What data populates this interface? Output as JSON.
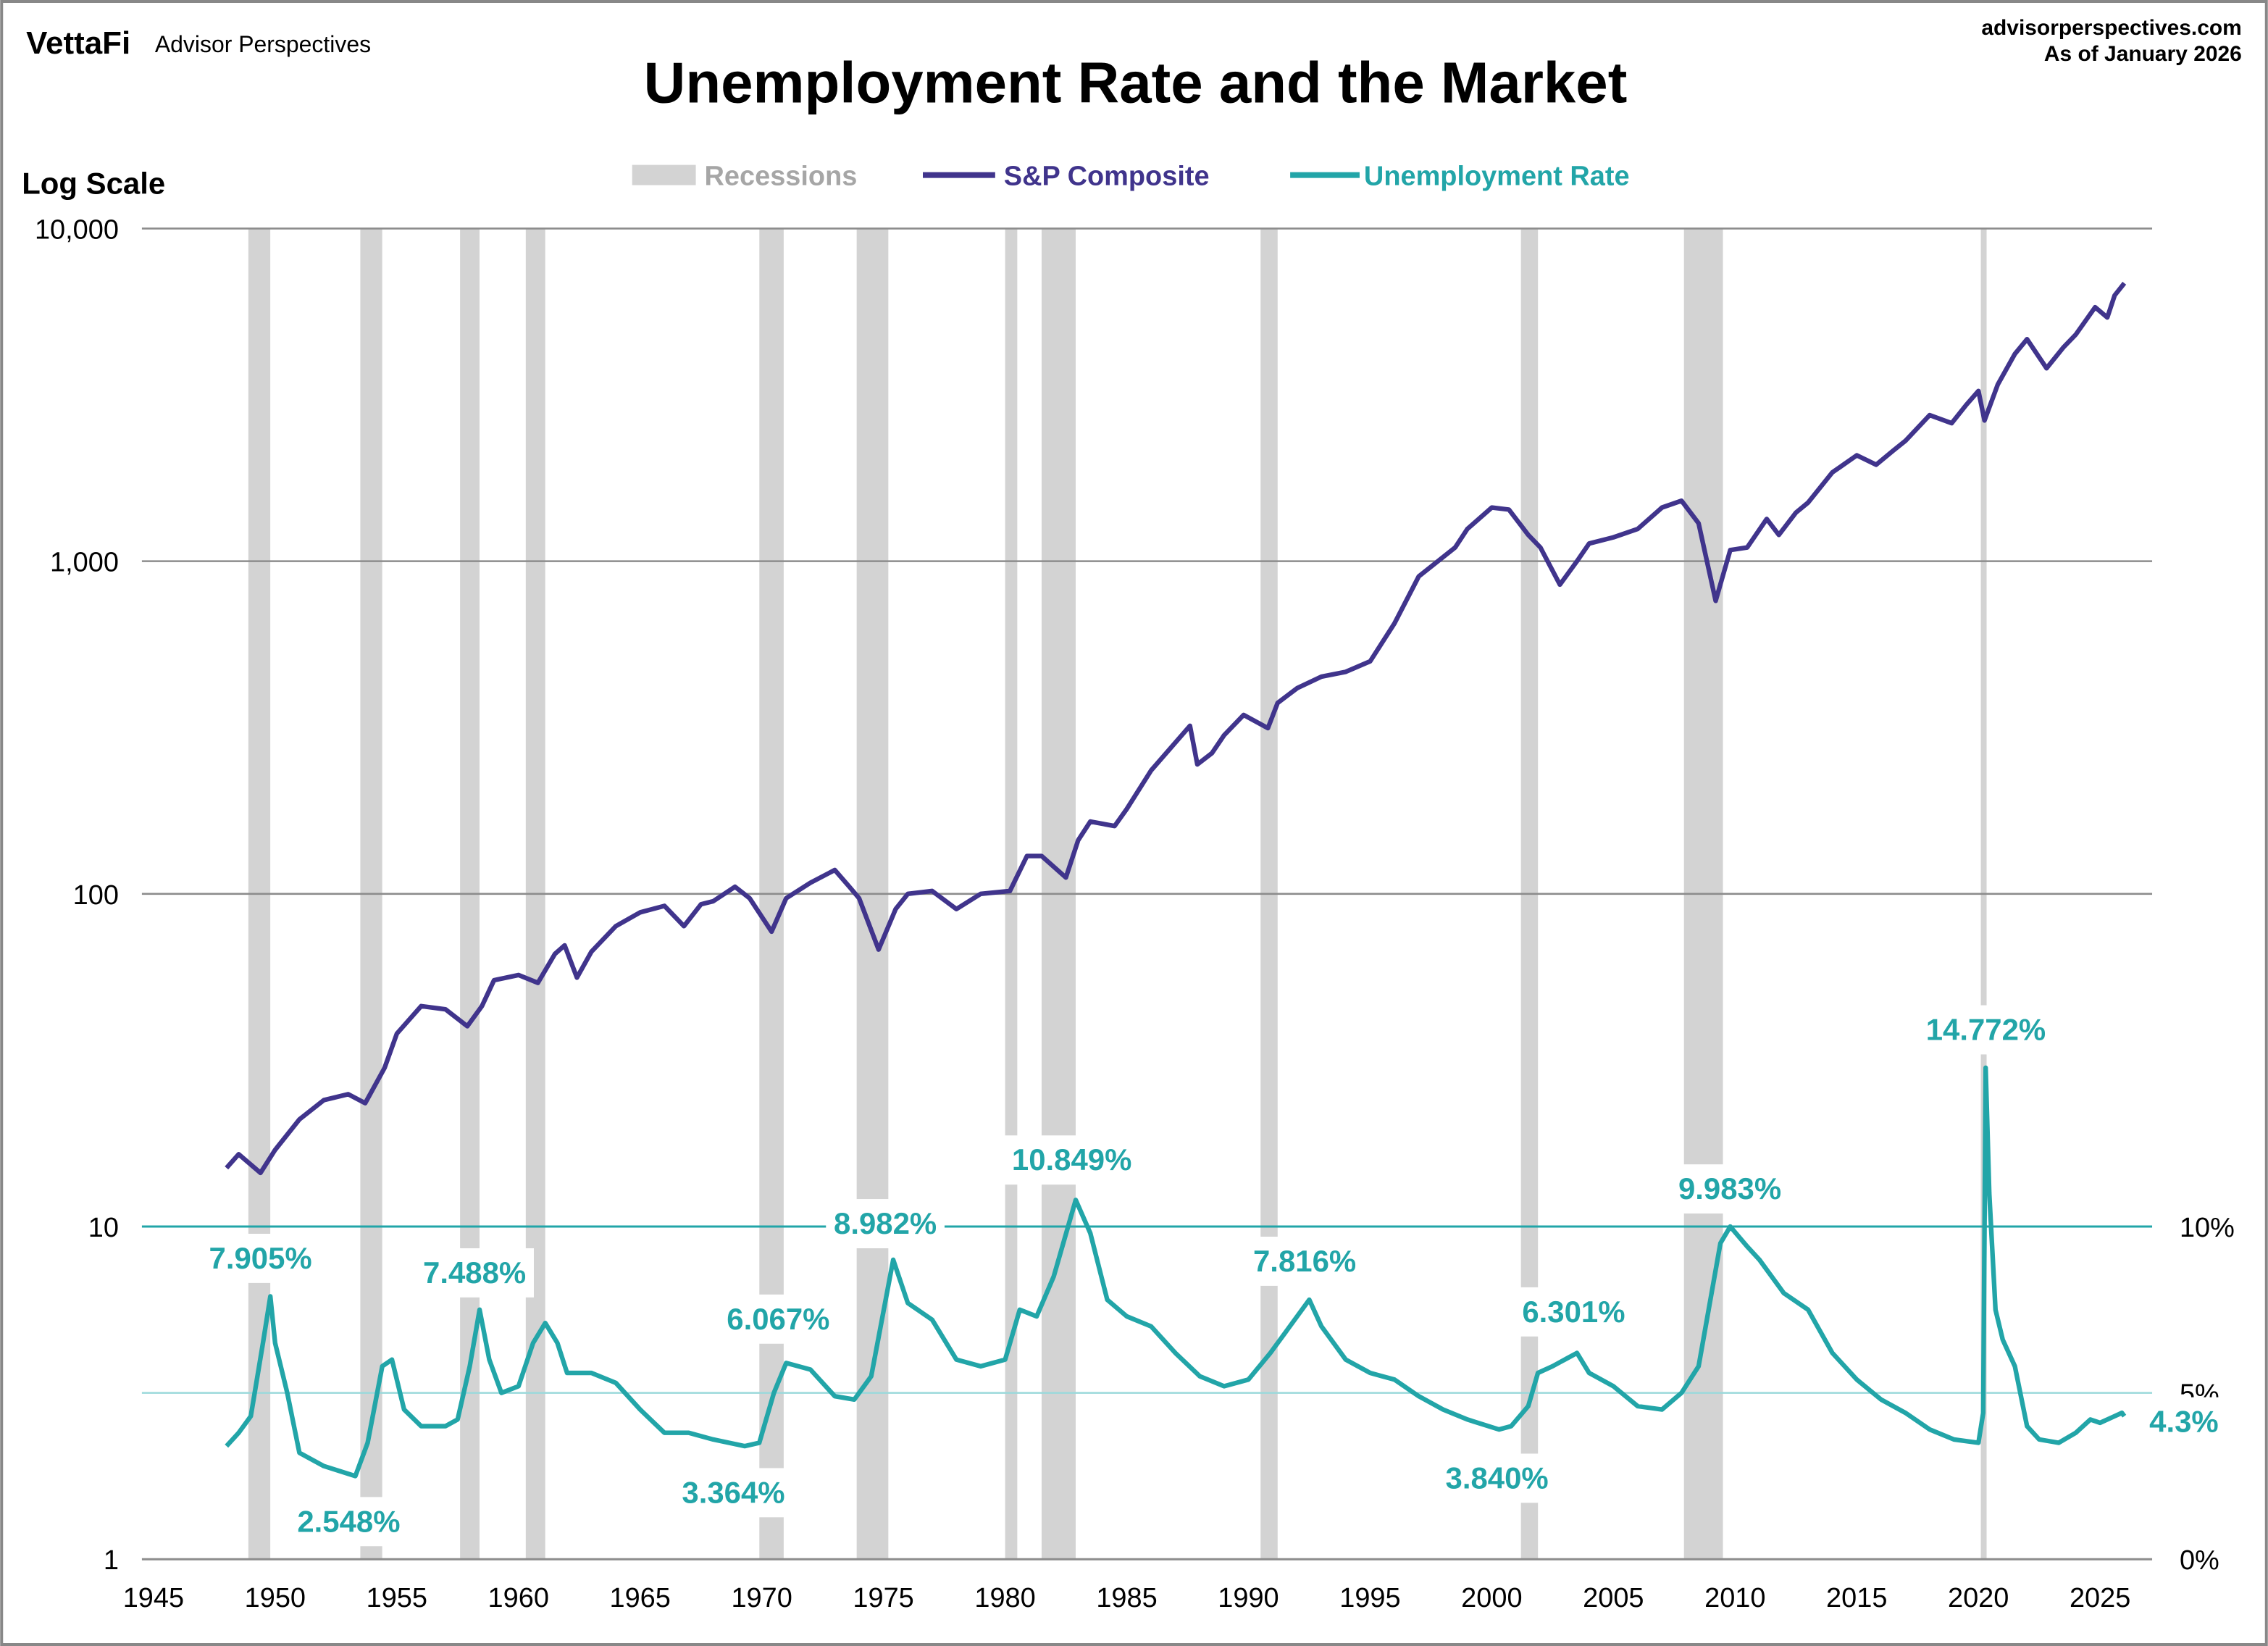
{
  "header": {
    "brand_logo": "VettaFi",
    "brand_name": "Advisor Perspectives",
    "website": "advisorperspectives.com",
    "as_of": "As of January 2026"
  },
  "chart_data": {
    "type": "line",
    "title": "Unemployment Rate and the Market",
    "left_axis_label": "Log Scale",
    "left_axis": {
      "scale": "log",
      "range": [
        1,
        10000
      ],
      "ticks": [
        "1",
        "10",
        "100",
        "1,000",
        "10,000"
      ]
    },
    "right_axis": {
      "scale": "linear",
      "range": [
        0,
        40
      ],
      "ticks": [
        "0%",
        "5%",
        "10%"
      ]
    },
    "x_axis": {
      "range": [
        1945,
        2027
      ],
      "ticks": [
        "1945",
        "1950",
        "1955",
        "1960",
        "1965",
        "1970",
        "1975",
        "1980",
        "1985",
        "1990",
        "1995",
        "2000",
        "2005",
        "2010",
        "2015",
        "2020",
        "2025"
      ]
    },
    "legend_position": "top-center",
    "legend": [
      {
        "name": "Recessions",
        "color": "#d3d3d3"
      },
      {
        "name": "S&P Composite",
        "color": "#40348c"
      },
      {
        "name": "Unemployment Rate",
        "color": "#22a5a8"
      }
    ],
    "recessions": [
      [
        1948.9,
        1949.8
      ],
      [
        1953.5,
        1954.4
      ],
      [
        1957.6,
        1958.4
      ],
      [
        1960.3,
        1961.1
      ],
      [
        1969.9,
        1970.9
      ],
      [
        1973.9,
        1975.2
      ],
      [
        1980.0,
        1980.5
      ],
      [
        1981.5,
        1982.9
      ],
      [
        1990.5,
        1991.2
      ],
      [
        2001.2,
        2001.9
      ],
      [
        2007.9,
        2009.5
      ],
      [
        2020.1,
        2020.3
      ]
    ],
    "series": [
      {
        "name": "S&P Composite",
        "axis": "left",
        "x": [
          1948.0,
          1948.5,
          1949.4,
          1950,
          1951,
          1952,
          1953,
          1953.7,
          1954.5,
          1955,
          1956,
          1957,
          1957.9,
          1958.5,
          1959,
          1960,
          1960.8,
          1961.5,
          1961.9,
          1962.4,
          1963,
          1964,
          1965,
          1966,
          1966.8,
          1967.5,
          1968,
          1968.9,
          1969.5,
          1970.4,
          1971,
          1972,
          1973,
          1973.6,
          1974,
          1974.8,
          1975.5,
          1976,
          1977,
          1978,
          1979,
          1980.2,
          1980.9,
          1981.5,
          1982.5,
          1983,
          1983.5,
          1984.5,
          1985,
          1986,
          1987.6,
          1987.9,
          1988.5,
          1989,
          1989.8,
          1990.8,
          1991.2,
          1992,
          1993,
          1994,
          1995,
          1996,
          1997,
          1998.5,
          1999,
          2000,
          2000.7,
          2001.5,
          2002,
          2002.8,
          2003.5,
          2004,
          2005,
          2006,
          2007,
          2007.8,
          2008.5,
          2009.2,
          2009.8,
          2010.5,
          2011.3,
          2011.8,
          2012.5,
          2013,
          2014,
          2015,
          2015.8,
          2016.5,
          2017,
          2018,
          2018.9,
          2019.5,
          2020.0,
          2020.25,
          2020.8,
          2021.5,
          2022,
          2022.8,
          2023.5,
          2024,
          2024.8,
          2025.3,
          2025.6,
          2026.0
        ],
        "values": [
          15,
          16.5,
          14.5,
          17,
          21,
          24,
          25,
          23.5,
          30,
          38,
          46,
          45,
          40,
          46,
          55,
          57,
          54,
          66,
          70,
          56,
          67,
          80,
          88,
          92,
          80,
          93,
          95,
          105,
          97,
          77,
          97,
          108,
          118,
          105,
          97,
          68,
          90,
          100,
          102,
          90,
          100,
          102,
          130,
          130,
          112,
          145,
          165,
          160,
          180,
          235,
          320,
          245,
          265,
          300,
          345,
          315,
          375,
          415,
          450,
          465,
          500,
          650,
          900,
          1100,
          1250,
          1450,
          1430,
          1200,
          1100,
          850,
          1000,
          1130,
          1180,
          1250,
          1450,
          1520,
          1300,
          760,
          1080,
          1100,
          1340,
          1200,
          1400,
          1500,
          1850,
          2080,
          1950,
          2150,
          2300,
          2750,
          2600,
          2950,
          3250,
          2650,
          3400,
          4200,
          4650,
          3800,
          4400,
          4800,
          5800,
          5400,
          6300,
          6850
        ]
      },
      {
        "name": "Unemployment Rate",
        "axis": "right",
        "x": [
          1948.0,
          1948.5,
          1949.0,
          1949.5,
          1949.8,
          1950.0,
          1950.5,
          1951,
          1952,
          1953.3,
          1953.8,
          1954.4,
          1954.8,
          1955.3,
          1956,
          1957,
          1957.5,
          1958.0,
          1958.4,
          1958.8,
          1959.3,
          1960,
          1960.6,
          1961.1,
          1961.6,
          1962,
          1963,
          1964,
          1965,
          1966,
          1967,
          1968,
          1969.3,
          1969.9,
          1970.5,
          1971,
          1972,
          1973,
          1973.8,
          1974.5,
          1975.4,
          1976,
          1977,
          1978,
          1979,
          1980.0,
          1980.6,
          1981.3,
          1982,
          1982.9,
          1983.5,
          1984.2,
          1985,
          1986,
          1987,
          1988,
          1989,
          1990.0,
          1990.9,
          1991.5,
          1992.5,
          1993,
          1994,
          1995,
          1996,
          1997,
          1998,
          1999,
          2000.3,
          2000.8,
          2001.5,
          2001.9,
          2002.5,
          2003.5,
          2004,
          2005,
          2006,
          2007,
          2007.8,
          2008.5,
          2009.4,
          2009.8,
          2010.5,
          2011,
          2012,
          2013,
          2014,
          2015,
          2016,
          2017,
          2018,
          2019,
          2020.0,
          2020.2,
          2020.3,
          2020.45,
          2020.7,
          2021.0,
          2021.5,
          2022.0,
          2022.5,
          2023.3,
          2024,
          2024.6,
          2025,
          2025.6,
          2025.9,
          2026.0
        ],
        "values": [
          3.4,
          3.8,
          4.3,
          6.5,
          7.9,
          6.5,
          5.0,
          3.2,
          2.8,
          2.5,
          3.5,
          5.8,
          6.0,
          4.5,
          4.0,
          4.0,
          4.2,
          5.8,
          7.5,
          6.0,
          5.0,
          5.2,
          6.5,
          7.1,
          6.5,
          5.6,
          5.6,
          5.3,
          4.5,
          3.8,
          3.8,
          3.6,
          3.4,
          3.5,
          5.0,
          5.9,
          5.7,
          4.9,
          4.8,
          5.5,
          9.0,
          7.7,
          7.2,
          6.0,
          5.8,
          6.0,
          7.5,
          7.3,
          8.5,
          10.8,
          9.8,
          7.8,
          7.3,
          7.0,
          6.2,
          5.5,
          5.2,
          5.4,
          6.2,
          6.8,
          7.8,
          7.0,
          6.0,
          5.6,
          5.4,
          4.9,
          4.5,
          4.2,
          3.9,
          4.0,
          4.6,
          5.6,
          5.8,
          6.2,
          5.6,
          5.2,
          4.6,
          4.5,
          5.0,
          5.8,
          9.5,
          10.0,
          9.4,
          9.0,
          8.0,
          7.5,
          6.2,
          5.4,
          4.8,
          4.4,
          3.9,
          3.6,
          3.5,
          4.4,
          14.772,
          11,
          7.5,
          6.6,
          5.8,
          4.0,
          3.6,
          3.5,
          3.8,
          4.2,
          4.1,
          4.3,
          4.4,
          4.3
        ]
      }
    ],
    "annotations": [
      "7.905%",
      "2.548%",
      "7.488%",
      "6.067%",
      "3.364%",
      "8.982%",
      "10.849%",
      "7.816%",
      "3.840%",
      "6.301%",
      "9.983%",
      "14.772%",
      "4.3%"
    ]
  }
}
